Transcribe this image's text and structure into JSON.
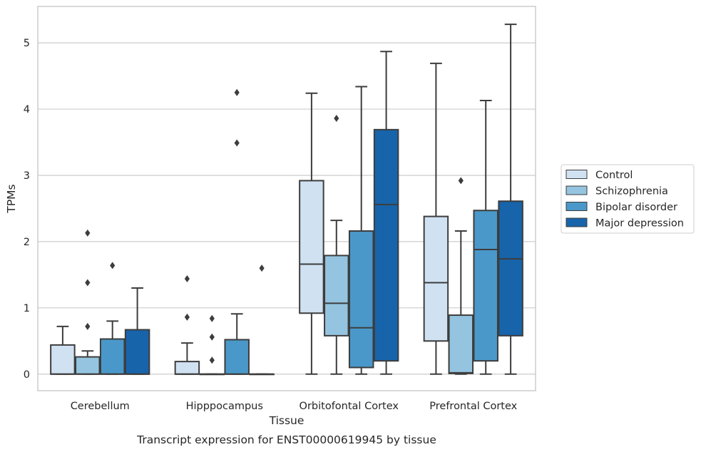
{
  "chart_data": {
    "type": "boxplot",
    "caption": "Transcript expression for ENST00000619945 by tissue",
    "xlabel": "Tissue",
    "ylabel": "TPMs",
    "ylim": [
      -0.25,
      5.55
    ],
    "yticks": [
      0,
      1,
      2,
      3,
      4,
      5
    ],
    "grid": true,
    "legend_position": "right",
    "categories": [
      "Cerebellum",
      "Hipppocampus",
      "Orbitofontal Cortex",
      "Prefrontal Cortex"
    ],
    "series": [
      {
        "name": "Control",
        "color": "#d0e1f2",
        "boxes": [
          {
            "whislo": 0,
            "q1": 0,
            "med": 0,
            "q3": 0.44,
            "whishi": 0.72,
            "fliers": []
          },
          {
            "whislo": 0,
            "q1": 0,
            "med": 0,
            "q3": 0.19,
            "whishi": 0.47,
            "fliers": [
              0.86,
              1.44
            ]
          },
          {
            "whislo": 0,
            "q1": 0.92,
            "med": 1.66,
            "q3": 2.92,
            "whishi": 4.24,
            "fliers": []
          },
          {
            "whislo": 0,
            "q1": 0.5,
            "med": 1.38,
            "q3": 2.38,
            "whishi": 4.69,
            "fliers": []
          }
        ]
      },
      {
        "name": "Schizophrenia",
        "color": "#94c4df",
        "boxes": [
          {
            "whislo": 0,
            "q1": 0,
            "med": 0,
            "q3": 0.26,
            "whishi": 0.35,
            "fliers": [
              0.72,
              1.38,
              2.13
            ]
          },
          {
            "whislo": 0,
            "q1": 0,
            "med": 0,
            "q3": 0,
            "whishi": 0,
            "fliers": [
              0.21,
              0.56,
              0.84
            ]
          },
          {
            "whislo": 0,
            "q1": 0.58,
            "med": 1.07,
            "q3": 1.79,
            "whishi": 2.32,
            "fliers": [
              3.86
            ]
          },
          {
            "whislo": 0,
            "q1": 0.01,
            "med": 0.02,
            "q3": 0.89,
            "whishi": 2.16,
            "fliers": [
              2.92
            ]
          }
        ]
      },
      {
        "name": "Bipolar disorder",
        "color": "#4a98c9",
        "boxes": [
          {
            "whislo": 0,
            "q1": 0,
            "med": 0,
            "q3": 0.53,
            "whishi": 0.8,
            "fliers": [
              1.64
            ]
          },
          {
            "whislo": 0,
            "q1": 0,
            "med": 0,
            "q3": 0.52,
            "whishi": 0.91,
            "fliers": [
              3.49,
              4.25
            ]
          },
          {
            "whislo": 0,
            "q1": 0.1,
            "med": 0.7,
            "q3": 2.16,
            "whishi": 4.34,
            "fliers": []
          },
          {
            "whislo": 0,
            "q1": 0.2,
            "med": 1.88,
            "q3": 2.47,
            "whishi": 4.13,
            "fliers": []
          }
        ]
      },
      {
        "name": "Major depression",
        "color": "#1764ab",
        "boxes": [
          {
            "whislo": 0,
            "q1": 0,
            "med": 0,
            "q3": 0.67,
            "whishi": 1.3,
            "fliers": []
          },
          {
            "whislo": 0,
            "q1": 0,
            "med": 0,
            "q3": 0,
            "whishi": 0,
            "fliers": [
              1.6
            ]
          },
          {
            "whislo": 0,
            "q1": 0.2,
            "med": 2.56,
            "q3": 3.69,
            "whishi": 4.87,
            "fliers": []
          },
          {
            "whislo": 0,
            "q1": 0.58,
            "med": 1.74,
            "q3": 2.61,
            "whishi": 5.28,
            "fliers": []
          }
        ]
      }
    ]
  }
}
